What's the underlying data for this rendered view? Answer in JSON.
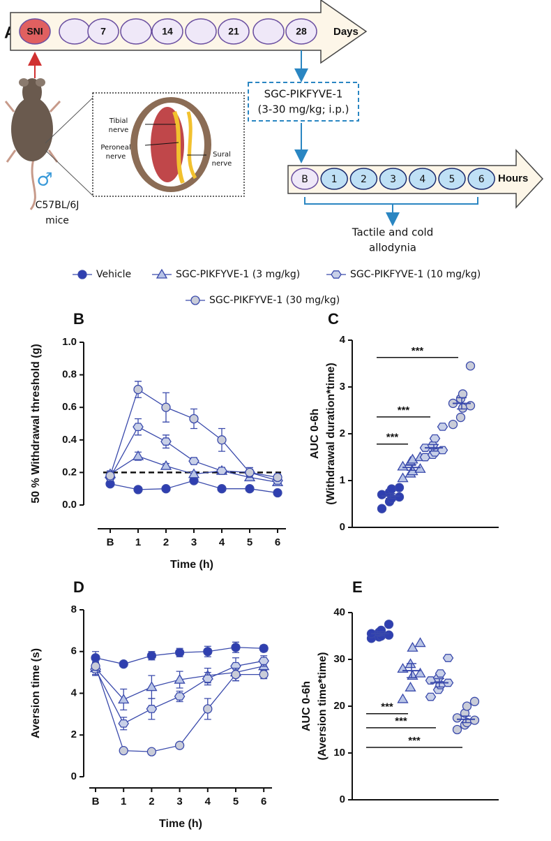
{
  "panel_a": {
    "label": "A",
    "days": [
      "SNI",
      "7",
      "14",
      "21",
      "28"
    ],
    "days_unit": "Days",
    "drug": [
      "SGC-PIKFYVE-1",
      "(3-30 mg/kg; i.p.)"
    ],
    "hours": [
      "B",
      "1",
      "2",
      "3",
      "4",
      "5",
      "6"
    ],
    "hours_unit": "Hours",
    "outcome": [
      "Tactile and cold",
      "allodynia"
    ],
    "nerves": [
      [
        "Tibial",
        "nerve"
      ],
      [
        "Peroneal",
        "nerve"
      ],
      [
        "Sural",
        "nerve"
      ]
    ],
    "sex": "♂",
    "strain": [
      "C57BL/6J",
      "mice"
    ]
  },
  "chart_data": [
    {
      "type": "line",
      "panel": "B",
      "categories": [
        "B",
        "1",
        "2",
        "3",
        "4",
        "5",
        "6"
      ],
      "xlabel": "Time (h)",
      "ylabel": "50 % Withdrawal threshold (g)",
      "ylim": [
        0,
        1
      ],
      "yticks": [
        {
          "value": 0,
          "label": "0.0"
        },
        0.2,
        0.4,
        0.6,
        0.8,
        {
          "value": 1,
          "label": "1.0"
        }
      ],
      "reference_line": 0.2,
      "series": [
        {
          "name": "Vehicle",
          "color": "#2f3fb0",
          "marker": "circle",
          "values": [
            0.13,
            0.095,
            0.1,
            0.15,
            0.1,
            0.1,
            0.075
          ],
          "errors": [
            0.01,
            0.01,
            0.01,
            0.015,
            0.01,
            0.01,
            0.01
          ]
        },
        {
          "name": "SGC-PIKFYVE-1 (3 mg/kg)",
          "color": "#b8c4e6",
          "marker": "triangle",
          "values": [
            0.19,
            0.3,
            0.24,
            0.19,
            0.21,
            0.17,
            0.14
          ],
          "errors": [
            0.02,
            0.025,
            0.015,
            0.015,
            0.02,
            0.02,
            0.015
          ]
        },
        {
          "name": "SGC-PIKFYVE-1 (10 mg/kg)",
          "color": "#c8d0e8",
          "marker": "hexagon",
          "values": [
            0.17,
            0.48,
            0.39,
            0.27,
            0.21,
            0.2,
            0.15
          ],
          "errors": [
            0.02,
            0.05,
            0.04,
            0.02,
            0.02,
            0.02,
            0.015
          ]
        },
        {
          "name": "SGC-PIKFYVE-1 (30 mg/kg)",
          "color": "#c9ccd8",
          "marker": "circle",
          "values": [
            0.18,
            0.71,
            0.6,
            0.53,
            0.4,
            0.2,
            0.17
          ],
          "errors": [
            0.02,
            0.05,
            0.09,
            0.06,
            0.07,
            0.03,
            0.02
          ]
        }
      ]
    },
    {
      "type": "strip",
      "panel": "C",
      "ylabel": [
        "AUC 0-6h",
        "(Withdrawal duration*time)"
      ],
      "ylim": [
        0,
        4
      ],
      "yticks": [
        0,
        1,
        2,
        3,
        4
      ],
      "groups": [
        {
          "color": "#2f3fb0",
          "marker": "circle",
          "values": [
            0.4,
            0.55,
            0.62,
            0.65,
            0.7,
            0.75,
            0.82,
            0.85
          ],
          "mean": 0.67,
          "sem": 0.05
        },
        {
          "color": "#b8c4e6",
          "marker": "triangle",
          "values": [
            1.05,
            1.15,
            1.2,
            1.25,
            1.3,
            1.4,
            1.45,
            1.5
          ],
          "mean": 1.28,
          "sem": 0.06
        },
        {
          "color": "#c8d0e8",
          "marker": "hexagon",
          "values": [
            1.5,
            1.55,
            1.6,
            1.65,
            1.7,
            1.75,
            1.9,
            2.15
          ],
          "mean": 1.7,
          "sem": 0.07
        },
        {
          "color": "#c9ccd8",
          "marker": "circle",
          "values": [
            2.2,
            2.35,
            2.55,
            2.6,
            2.65,
            2.75,
            2.85,
            3.45
          ],
          "mean": 2.65,
          "sem": 0.12
        }
      ],
      "comparisons": [
        {
          "label": "***",
          "y": 3.63,
          "from": 0,
          "to": 3
        },
        {
          "label": "***",
          "y": 2.36,
          "from": 0,
          "to": 2
        },
        {
          "label": "***",
          "y": 1.78,
          "from": 0,
          "to": 1
        }
      ]
    },
    {
      "type": "line",
      "panel": "D",
      "categories": [
        "B",
        "1",
        "2",
        "3",
        "4",
        "5",
        "6"
      ],
      "xlabel": "Time (h)",
      "ylabel": "Aversion time (s)",
      "ylim": [
        0,
        8
      ],
      "yticks": [
        0,
        2,
        4,
        6,
        8
      ],
      "series": [
        {
          "name": "Vehicle",
          "color": "#2f3fb0",
          "marker": "circle",
          "values": [
            5.7,
            5.4,
            5.8,
            5.95,
            6.0,
            6.2,
            6.15
          ],
          "errors": [
            0.3,
            0.1,
            0.2,
            0.2,
            0.25,
            0.25,
            0.15
          ]
        },
        {
          "name": "SGC-PIKFYVE-1 (3 mg/kg)",
          "color": "#b8c4e6",
          "marker": "triangle",
          "values": [
            5.2,
            3.7,
            4.3,
            4.65,
            4.85,
            5.0,
            5.3
          ],
          "errors": [
            0.3,
            0.5,
            0.55,
            0.4,
            0.35,
            0.4,
            0.3
          ]
        },
        {
          "name": "SGC-PIKFYVE-1 (10 mg/kg)",
          "color": "#c8d0e8",
          "marker": "hexagon",
          "values": [
            5.15,
            2.55,
            3.25,
            3.85,
            4.7,
            5.3,
            5.55
          ],
          "errors": [
            0.3,
            0.3,
            0.5,
            0.25,
            0.3,
            0.4,
            0.25
          ]
        },
        {
          "name": "SGC-PIKFYVE-1 (30 mg/kg)",
          "color": "#c9ccd8",
          "marker": "circle",
          "values": [
            5.3,
            1.25,
            1.2,
            1.5,
            3.25,
            4.9,
            4.9
          ],
          "errors": [
            0.2,
            0.1,
            0.1,
            0.1,
            0.5,
            0.3,
            0.2
          ]
        }
      ]
    },
    {
      "type": "strip",
      "panel": "E",
      "ylabel": [
        "AUC 0-6h",
        "(Aversion time*time)"
      ],
      "ylim": [
        0,
        40
      ],
      "yticks": [
        0,
        10,
        20,
        30,
        40
      ],
      "groups": [
        {
          "color": "#2f3fb0",
          "marker": "circle",
          "values": [
            34.5,
            34.8,
            35.0,
            35.2,
            35.5,
            35.8,
            36.2,
            37.5
          ],
          "mean": 35.5,
          "sem": 0.4
        },
        {
          "color": "#b8c4e6",
          "marker": "triangle",
          "values": [
            21.5,
            24,
            26.5,
            27,
            28,
            29,
            32.5,
            33.5
          ],
          "mean": 27.6,
          "sem": 1.5
        },
        {
          "color": "#c8d0e8",
          "marker": "hexagon",
          "values": [
            22,
            23.5,
            24.5,
            25,
            25.5,
            26,
            27,
            30.3
          ],
          "mean": 25.0,
          "sem": 0.9
        },
        {
          "color": "#c9ccd8",
          "marker": "circle",
          "values": [
            15,
            16,
            16.5,
            17,
            17.5,
            18.5,
            20,
            21
          ],
          "mean": 17.2,
          "sem": 0.7
        }
      ],
      "comparisons": [
        {
          "label": "***",
          "y": 18.4,
          "from": 0,
          "to": 1
        },
        {
          "label": "***",
          "y": 15.4,
          "from": 0,
          "to": 2
        },
        {
          "label": "***",
          "y": 11.2,
          "from": 0,
          "to": 3
        }
      ]
    }
  ]
}
